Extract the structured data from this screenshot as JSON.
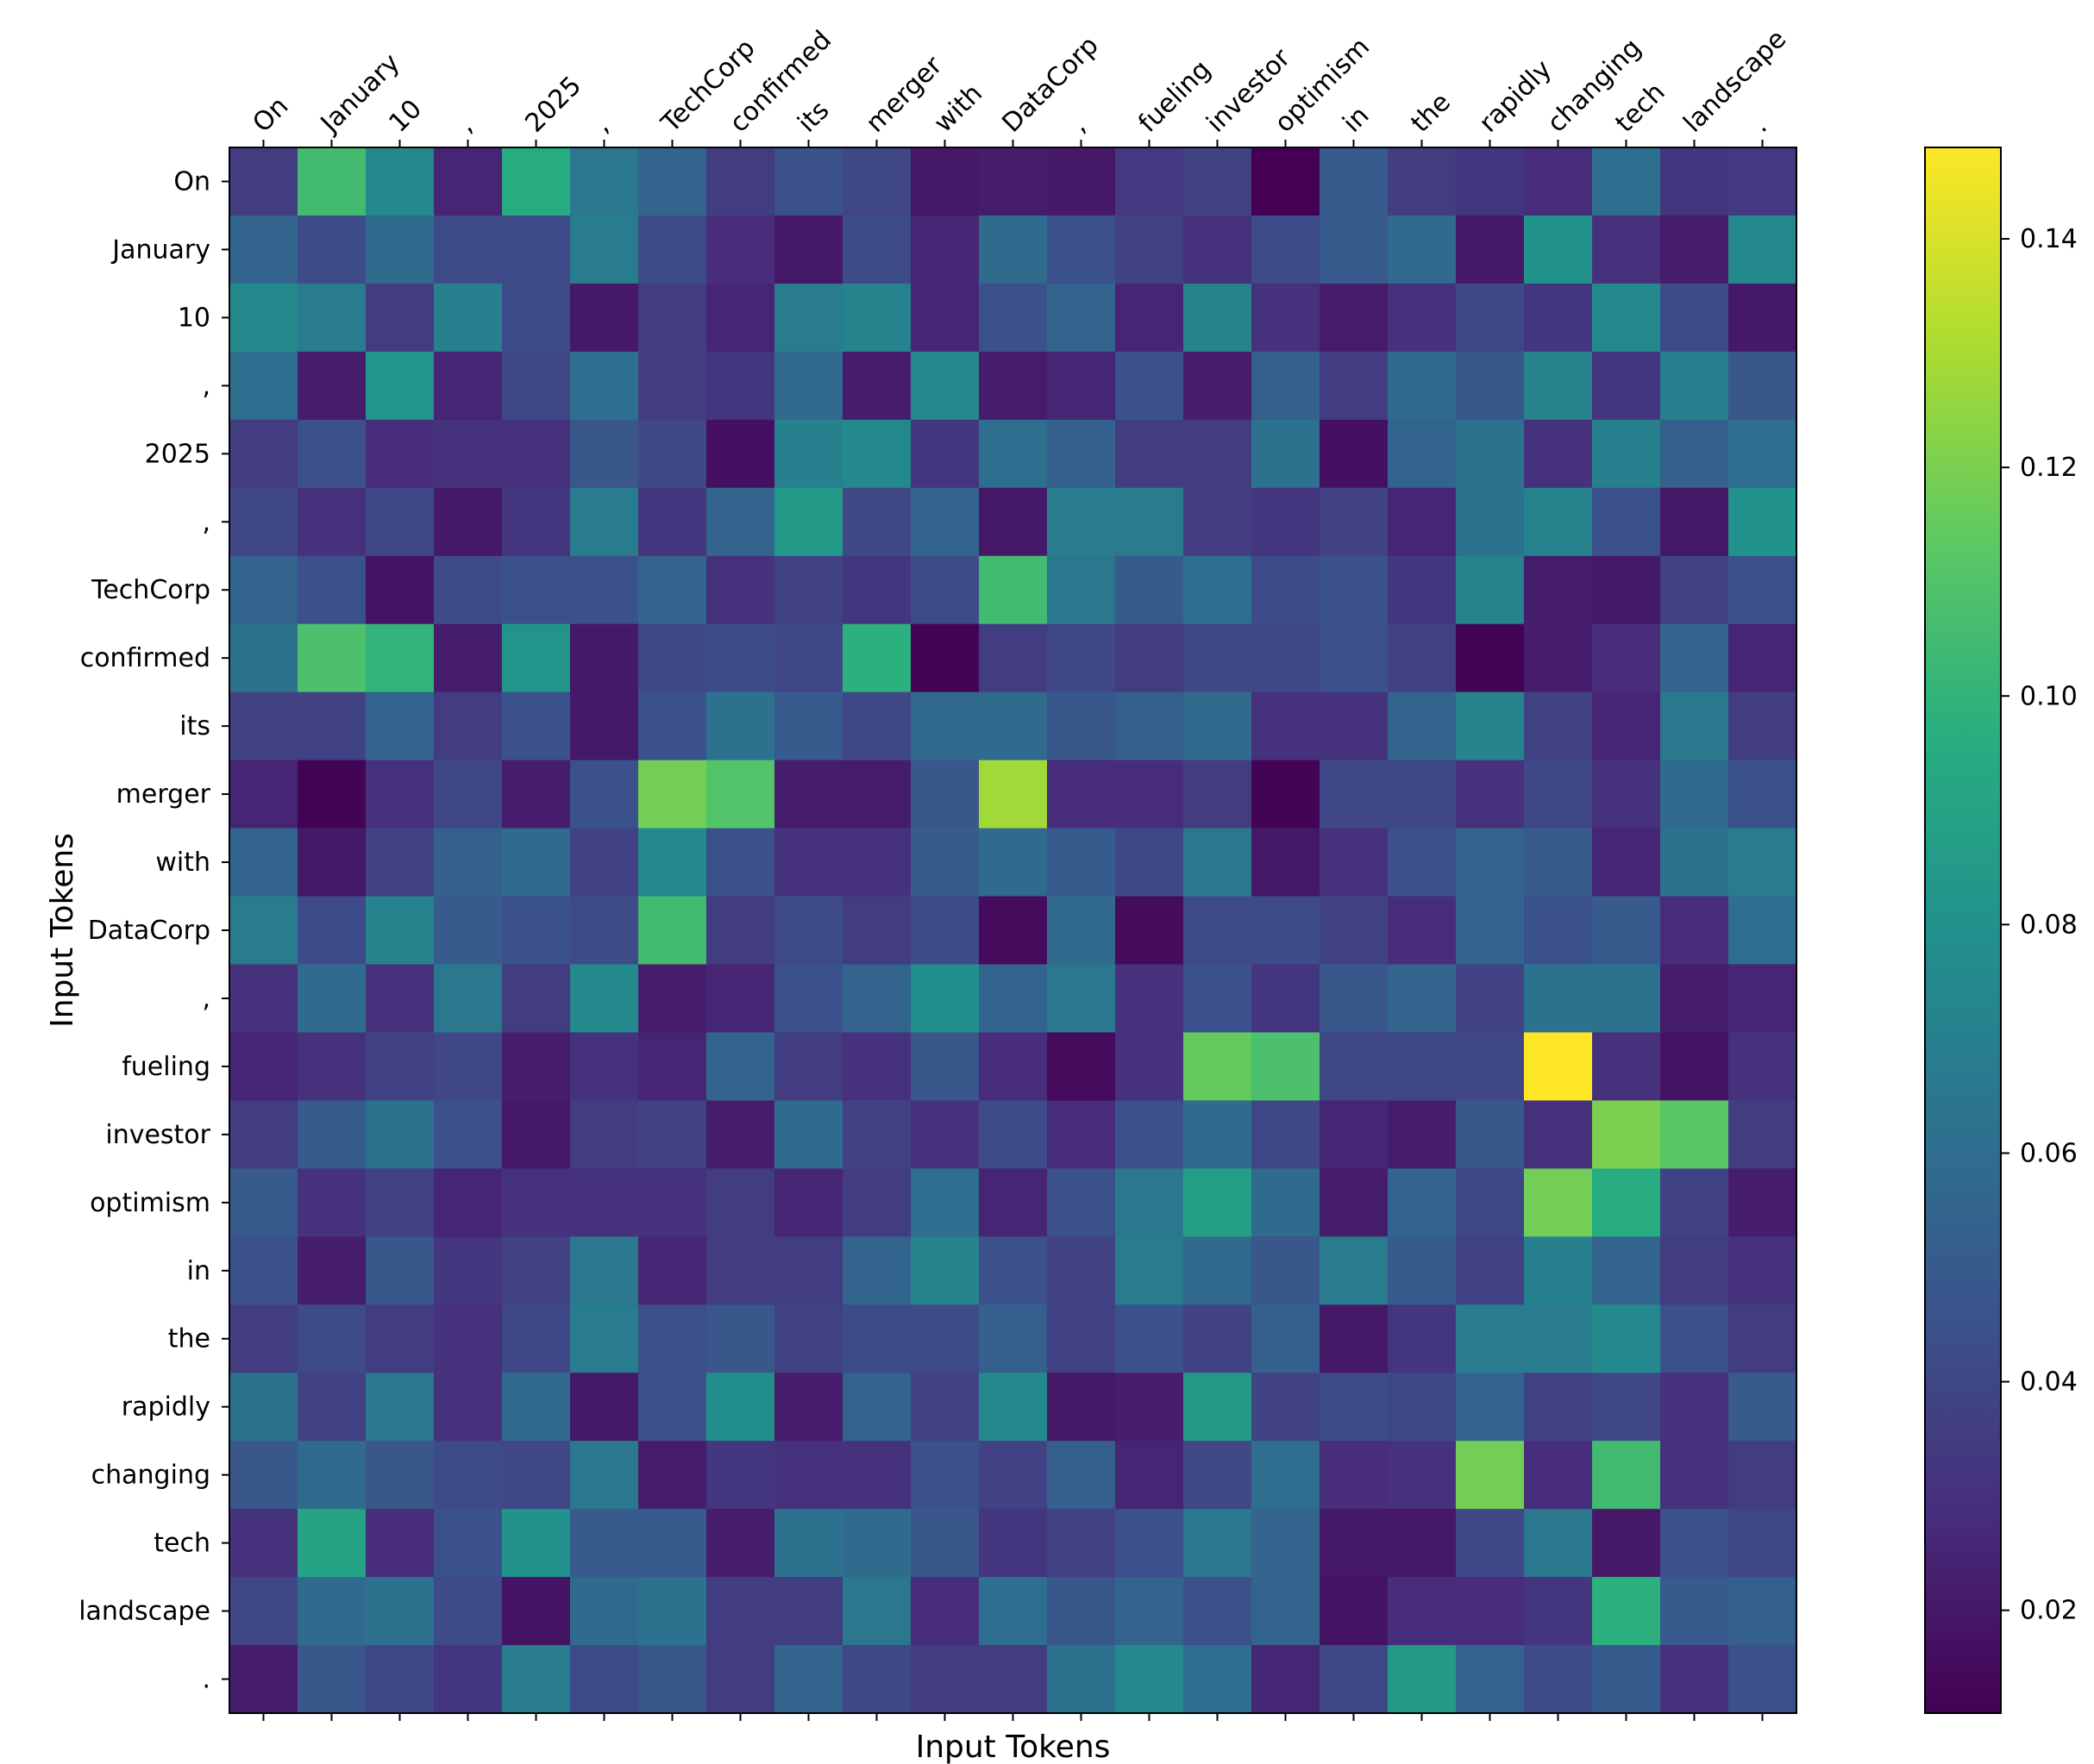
{
  "chart_data": {
    "type": "heatmap",
    "title": "",
    "xlabel": "Input Tokens",
    "ylabel": "Input Tokens",
    "x_tokens": [
      "On",
      "January",
      "10",
      ",",
      "2025",
      ",",
      "TechCorp",
      "confirmed",
      "its",
      "merger",
      "with",
      "DataCorp",
      ",",
      "fueling",
      "investor",
      "optimism",
      "in",
      "the",
      "rapidly",
      "changing",
      "tech",
      "landscape",
      "."
    ],
    "y_tokens": [
      "On",
      "January",
      "10",
      ",",
      "2025",
      ",",
      "TechCorp",
      "confirmed",
      "its",
      "merger",
      "with",
      "DataCorp",
      ",",
      "fueling",
      "investor",
      "optimism",
      "in",
      "the",
      "rapidly",
      "changing",
      "tech",
      "landscape",
      "."
    ],
    "colormap": "viridis",
    "vmin": 0.011,
    "vmax": 0.148,
    "colorbar_ticks": [
      0.02,
      0.04,
      0.06,
      0.08,
      0.1,
      0.12,
      0.14
    ],
    "colorbar_tick_labels": [
      "0.02",
      "0.04",
      "0.06",
      "0.08",
      "0.10",
      "0.12",
      "0.14"
    ],
    "values": [
      [
        0.035,
        0.105,
        0.075,
        0.025,
        0.095,
        0.065,
        0.055,
        0.035,
        0.045,
        0.04,
        0.02,
        0.022,
        0.02,
        0.033,
        0.038,
        0.011,
        0.05,
        0.035,
        0.032,
        0.028,
        0.06,
        0.032,
        0.033
      ],
      [
        0.055,
        0.042,
        0.058,
        0.042,
        0.042,
        0.068,
        0.042,
        0.028,
        0.02,
        0.042,
        0.025,
        0.058,
        0.045,
        0.038,
        0.03,
        0.042,
        0.05,
        0.058,
        0.02,
        0.08,
        0.03,
        0.022,
        0.075
      ],
      [
        0.075,
        0.068,
        0.035,
        0.07,
        0.042,
        0.02,
        0.035,
        0.025,
        0.068,
        0.072,
        0.025,
        0.045,
        0.055,
        0.025,
        0.072,
        0.03,
        0.022,
        0.03,
        0.04,
        0.032,
        0.075,
        0.042,
        0.02
      ],
      [
        0.06,
        0.022,
        0.082,
        0.025,
        0.04,
        0.06,
        0.035,
        0.032,
        0.058,
        0.022,
        0.075,
        0.022,
        0.025,
        0.045,
        0.022,
        0.052,
        0.035,
        0.058,
        0.048,
        0.072,
        0.032,
        0.07,
        0.048
      ],
      [
        0.035,
        0.045,
        0.028,
        0.03,
        0.03,
        0.048,
        0.04,
        0.017,
        0.07,
        0.075,
        0.032,
        0.06,
        0.052,
        0.035,
        0.035,
        0.062,
        0.017,
        0.055,
        0.062,
        0.03,
        0.07,
        0.052,
        0.06
      ],
      [
        0.04,
        0.03,
        0.04,
        0.02,
        0.032,
        0.068,
        0.032,
        0.055,
        0.085,
        0.04,
        0.055,
        0.02,
        0.068,
        0.068,
        0.035,
        0.032,
        0.038,
        0.025,
        0.062,
        0.072,
        0.045,
        0.02,
        0.08
      ],
      [
        0.055,
        0.045,
        0.018,
        0.042,
        0.045,
        0.045,
        0.055,
        0.03,
        0.038,
        0.032,
        0.042,
        0.105,
        0.065,
        0.05,
        0.06,
        0.042,
        0.045,
        0.032,
        0.072,
        0.022,
        0.02,
        0.038,
        0.045
      ],
      [
        0.062,
        0.108,
        0.1,
        0.022,
        0.082,
        0.02,
        0.04,
        0.042,
        0.04,
        0.098,
        0.012,
        0.035,
        0.04,
        0.035,
        0.04,
        0.04,
        0.045,
        0.038,
        0.012,
        0.022,
        0.028,
        0.055,
        0.025
      ],
      [
        0.038,
        0.038,
        0.055,
        0.035,
        0.045,
        0.02,
        0.045,
        0.062,
        0.05,
        0.04,
        0.058,
        0.058,
        0.048,
        0.052,
        0.058,
        0.03,
        0.03,
        0.055,
        0.072,
        0.038,
        0.025,
        0.065,
        0.035
      ],
      [
        0.025,
        0.012,
        0.03,
        0.04,
        0.022,
        0.045,
        0.118,
        0.11,
        0.022,
        0.022,
        0.048,
        0.128,
        0.028,
        0.028,
        0.035,
        0.012,
        0.04,
        0.04,
        0.03,
        0.04,
        0.03,
        0.058,
        0.045
      ],
      [
        0.055,
        0.02,
        0.038,
        0.052,
        0.058,
        0.038,
        0.075,
        0.045,
        0.03,
        0.03,
        0.05,
        0.058,
        0.05,
        0.04,
        0.065,
        0.02,
        0.03,
        0.045,
        0.055,
        0.05,
        0.025,
        0.062,
        0.068
      ],
      [
        0.068,
        0.042,
        0.072,
        0.05,
        0.045,
        0.042,
        0.105,
        0.035,
        0.042,
        0.035,
        0.042,
        0.015,
        0.058,
        0.015,
        0.042,
        0.042,
        0.038,
        0.028,
        0.055,
        0.045,
        0.05,
        0.028,
        0.06
      ],
      [
        0.03,
        0.058,
        0.03,
        0.065,
        0.035,
        0.075,
        0.022,
        0.025,
        0.045,
        0.055,
        0.078,
        0.055,
        0.065,
        0.03,
        0.045,
        0.032,
        0.048,
        0.055,
        0.038,
        0.062,
        0.062,
        0.022,
        0.025
      ],
      [
        0.025,
        0.03,
        0.038,
        0.04,
        0.022,
        0.03,
        0.025,
        0.055,
        0.035,
        0.03,
        0.048,
        0.028,
        0.015,
        0.03,
        0.115,
        0.108,
        0.04,
        0.04,
        0.04,
        0.148,
        0.03,
        0.018,
        0.03
      ],
      [
        0.035,
        0.05,
        0.062,
        0.045,
        0.02,
        0.035,
        0.038,
        0.022,
        0.058,
        0.038,
        0.03,
        0.042,
        0.028,
        0.045,
        0.058,
        0.04,
        0.025,
        0.022,
        0.048,
        0.03,
        0.12,
        0.112,
        0.035
      ],
      [
        0.05,
        0.03,
        0.038,
        0.025,
        0.03,
        0.03,
        0.03,
        0.035,
        0.025,
        0.035,
        0.06,
        0.025,
        0.045,
        0.065,
        0.088,
        0.058,
        0.022,
        0.055,
        0.04,
        0.118,
        0.095,
        0.038,
        0.022
      ],
      [
        0.045,
        0.022,
        0.048,
        0.032,
        0.038,
        0.065,
        0.025,
        0.035,
        0.035,
        0.055,
        0.072,
        0.045,
        0.038,
        0.068,
        0.058,
        0.048,
        0.068,
        0.05,
        0.038,
        0.07,
        0.055,
        0.035,
        0.03
      ],
      [
        0.035,
        0.042,
        0.035,
        0.03,
        0.04,
        0.068,
        0.045,
        0.048,
        0.038,
        0.042,
        0.042,
        0.052,
        0.038,
        0.045,
        0.038,
        0.052,
        0.02,
        0.032,
        0.068,
        0.068,
        0.075,
        0.045,
        0.035
      ],
      [
        0.062,
        0.038,
        0.065,
        0.03,
        0.058,
        0.02,
        0.045,
        0.078,
        0.022,
        0.055,
        0.038,
        0.075,
        0.02,
        0.022,
        0.085,
        0.038,
        0.042,
        0.04,
        0.055,
        0.038,
        0.04,
        0.03,
        0.05
      ],
      [
        0.048,
        0.058,
        0.048,
        0.042,
        0.04,
        0.065,
        0.022,
        0.032,
        0.03,
        0.03,
        0.045,
        0.038,
        0.052,
        0.025,
        0.04,
        0.06,
        0.028,
        0.03,
        0.118,
        0.028,
        0.105,
        0.03,
        0.035
      ],
      [
        0.03,
        0.09,
        0.028,
        0.045,
        0.08,
        0.05,
        0.05,
        0.022,
        0.062,
        0.058,
        0.048,
        0.032,
        0.038,
        0.045,
        0.065,
        0.055,
        0.02,
        0.02,
        0.04,
        0.065,
        0.02,
        0.045,
        0.04
      ],
      [
        0.04,
        0.058,
        0.062,
        0.042,
        0.018,
        0.058,
        0.062,
        0.035,
        0.035,
        0.065,
        0.028,
        0.06,
        0.048,
        0.055,
        0.045,
        0.055,
        0.018,
        0.028,
        0.028,
        0.032,
        0.098,
        0.05,
        0.052
      ],
      [
        0.022,
        0.048,
        0.04,
        0.032,
        0.068,
        0.042,
        0.048,
        0.035,
        0.055,
        0.04,
        0.035,
        0.035,
        0.062,
        0.075,
        0.06,
        0.025,
        0.04,
        0.085,
        0.055,
        0.042,
        0.05,
        0.03,
        0.045
      ]
    ]
  }
}
